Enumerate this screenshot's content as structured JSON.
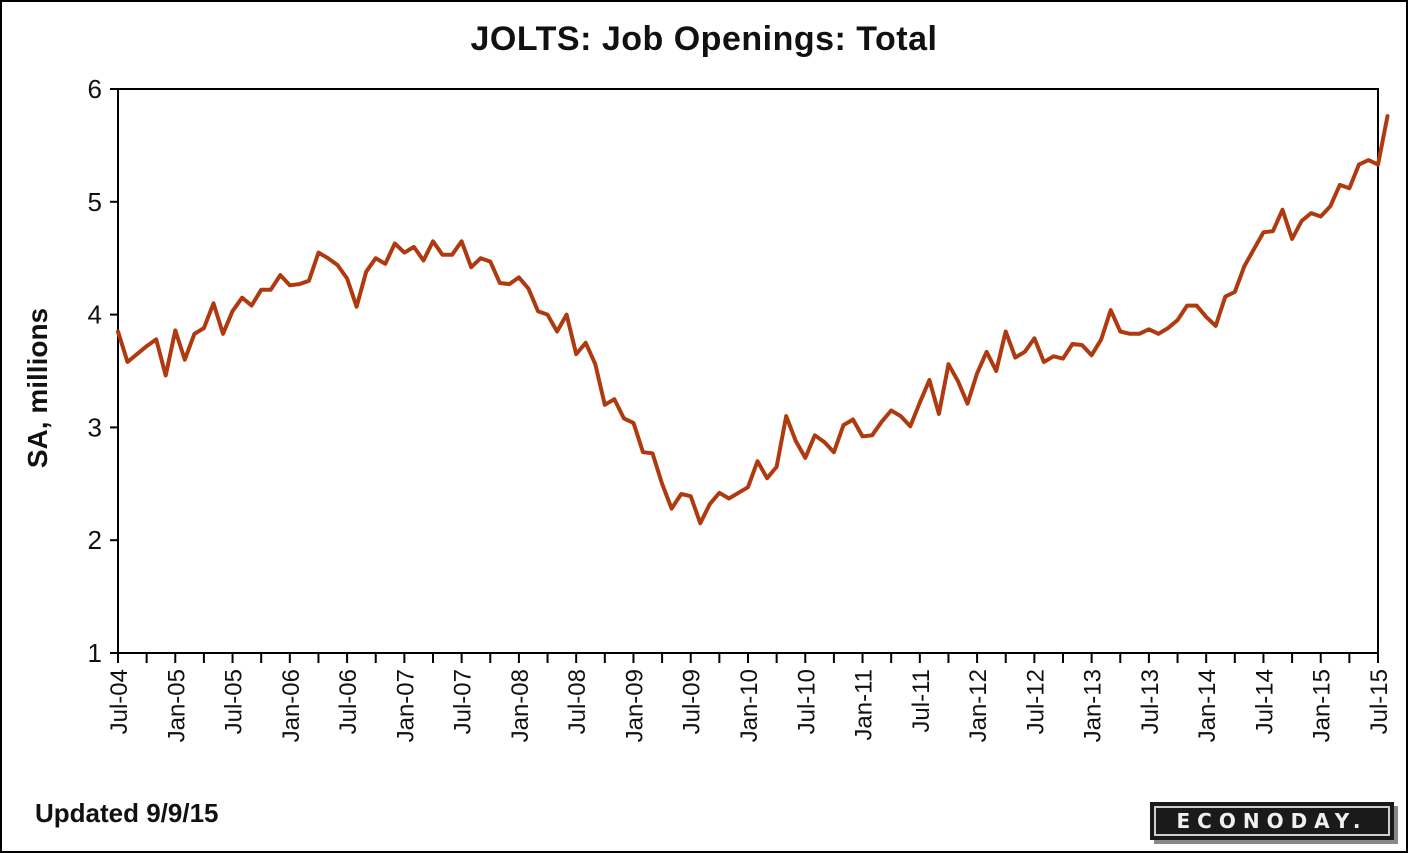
{
  "chart_data": {
    "type": "line",
    "title": "JOLTS: Job Openings: Total",
    "ylabel": "SA, millions",
    "xlabel": "",
    "ylim": [
      1,
      6
    ],
    "yticks": [
      1,
      2,
      3,
      4,
      5,
      6
    ],
    "grid": false,
    "legend": "none",
    "line_color": "#b03a10",
    "x_tick_labels": [
      "Jul-04",
      "Jan-05",
      "Jul-05",
      "Jan-06",
      "Jul-06",
      "Jan-07",
      "Jul-07",
      "Jan-08",
      "Jul-08",
      "Jan-09",
      "Jul-09",
      "Jan-10",
      "Jul-10",
      "Jan-11",
      "Jul-11",
      "Jan-12",
      "Jul-12",
      "Jan-13",
      "Jul-13",
      "Jan-14",
      "Jul-14",
      "Jan-15",
      "Jul-15"
    ],
    "x_start": "Jul-04",
    "series": [
      {
        "values": [
          3.85,
          3.58,
          3.65,
          3.72,
          3.78,
          3.46,
          3.86,
          3.6,
          3.83,
          3.88,
          4.1,
          3.83,
          4.03,
          4.15,
          4.08,
          4.22,
          4.22,
          4.35,
          4.26,
          4.27,
          4.3,
          4.55,
          4.5,
          4.44,
          4.32,
          4.07,
          4.38,
          4.5,
          4.45,
          4.63,
          4.55,
          4.6,
          4.48,
          4.65,
          4.53,
          4.53,
          4.65,
          4.42,
          4.5,
          4.47,
          4.28,
          4.27,
          4.33,
          4.23,
          4.03,
          4.0,
          3.85,
          4.0,
          3.65,
          3.75,
          3.56,
          3.2,
          3.25,
          3.08,
          3.04,
          2.78,
          2.77,
          2.5,
          2.28,
          2.41,
          2.39,
          2.15,
          2.32,
          2.42,
          2.37,
          2.42,
          2.47,
          2.7,
          2.55,
          2.65,
          3.1,
          2.88,
          2.73,
          2.93,
          2.87,
          2.78,
          3.02,
          3.07,
          2.92,
          2.93,
          3.05,
          3.15,
          3.1,
          3.01,
          3.22,
          3.42,
          3.12,
          3.56,
          3.41,
          3.21,
          3.48,
          3.67,
          3.5,
          3.85,
          3.62,
          3.67,
          3.79,
          3.58,
          3.63,
          3.61,
          3.74,
          3.73,
          3.64,
          3.78,
          4.04,
          3.85,
          3.83,
          3.83,
          3.87,
          3.83,
          3.88,
          3.95,
          4.08,
          4.08,
          3.98,
          3.9,
          4.16,
          4.2,
          4.43,
          4.58,
          4.73,
          4.74,
          4.93,
          4.67,
          4.83,
          4.9,
          4.87,
          4.96,
          5.15,
          5.12,
          5.33,
          5.37,
          5.33,
          5.76
        ]
      }
    ]
  },
  "footer": {
    "updated": "Updated 9/9/15",
    "logo": "ECONODAY."
  }
}
